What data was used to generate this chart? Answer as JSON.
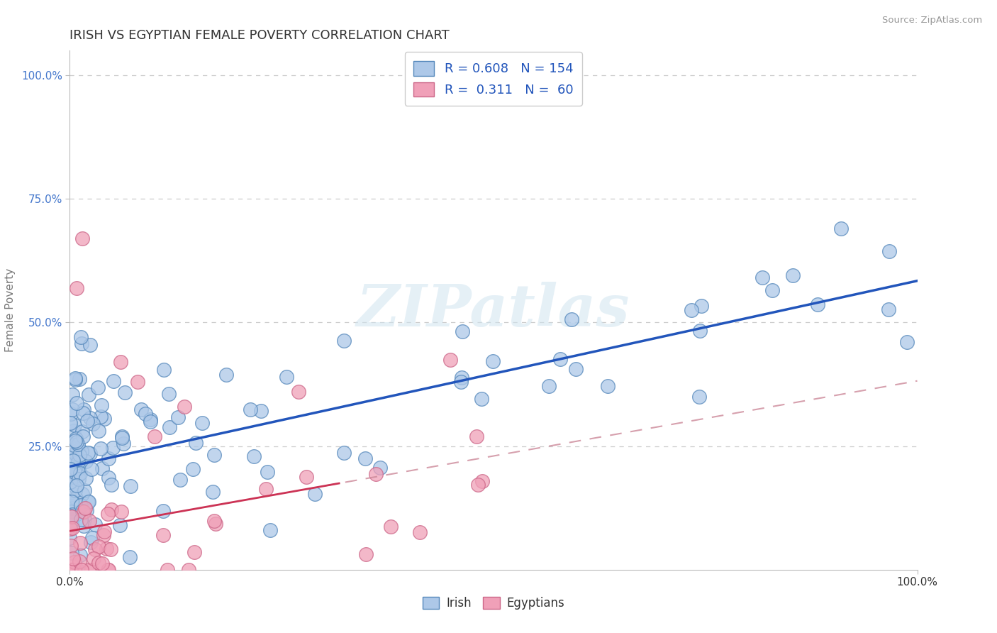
{
  "title": "IRISH VS EGYPTIAN FEMALE POVERTY CORRELATION CHART",
  "source": "Source: ZipAtlas.com",
  "ylabel": "Female Poverty",
  "xlim": [
    0.0,
    1.0
  ],
  "ylim": [
    0.0,
    1.05
  ],
  "x_tick_labels": [
    "0.0%",
    "100.0%"
  ],
  "y_tick_labels": [
    "25.0%",
    "50.0%",
    "75.0%",
    "100.0%"
  ],
  "y_tick_positions": [
    0.25,
    0.5,
    0.75,
    1.0
  ],
  "irish_color": "#adc8e8",
  "irish_edge_color": "#5588bb",
  "egyptian_color": "#f0a0b8",
  "egyptian_edge_color": "#cc6688",
  "irish_line_color": "#2255bb",
  "egyptian_line_color": "#cc3355",
  "egyptian_dash_color": "#cc8899",
  "irish_R": 0.608,
  "irish_N": 154,
  "egyptian_R": 0.311,
  "egyptian_N": 60,
  "watermark": "ZIPatlas",
  "background_color": "#ffffff",
  "grid_color": "#cccccc",
  "title_color": "#333333",
  "y_label_color": "#4477cc",
  "x_label_color": "#333333"
}
